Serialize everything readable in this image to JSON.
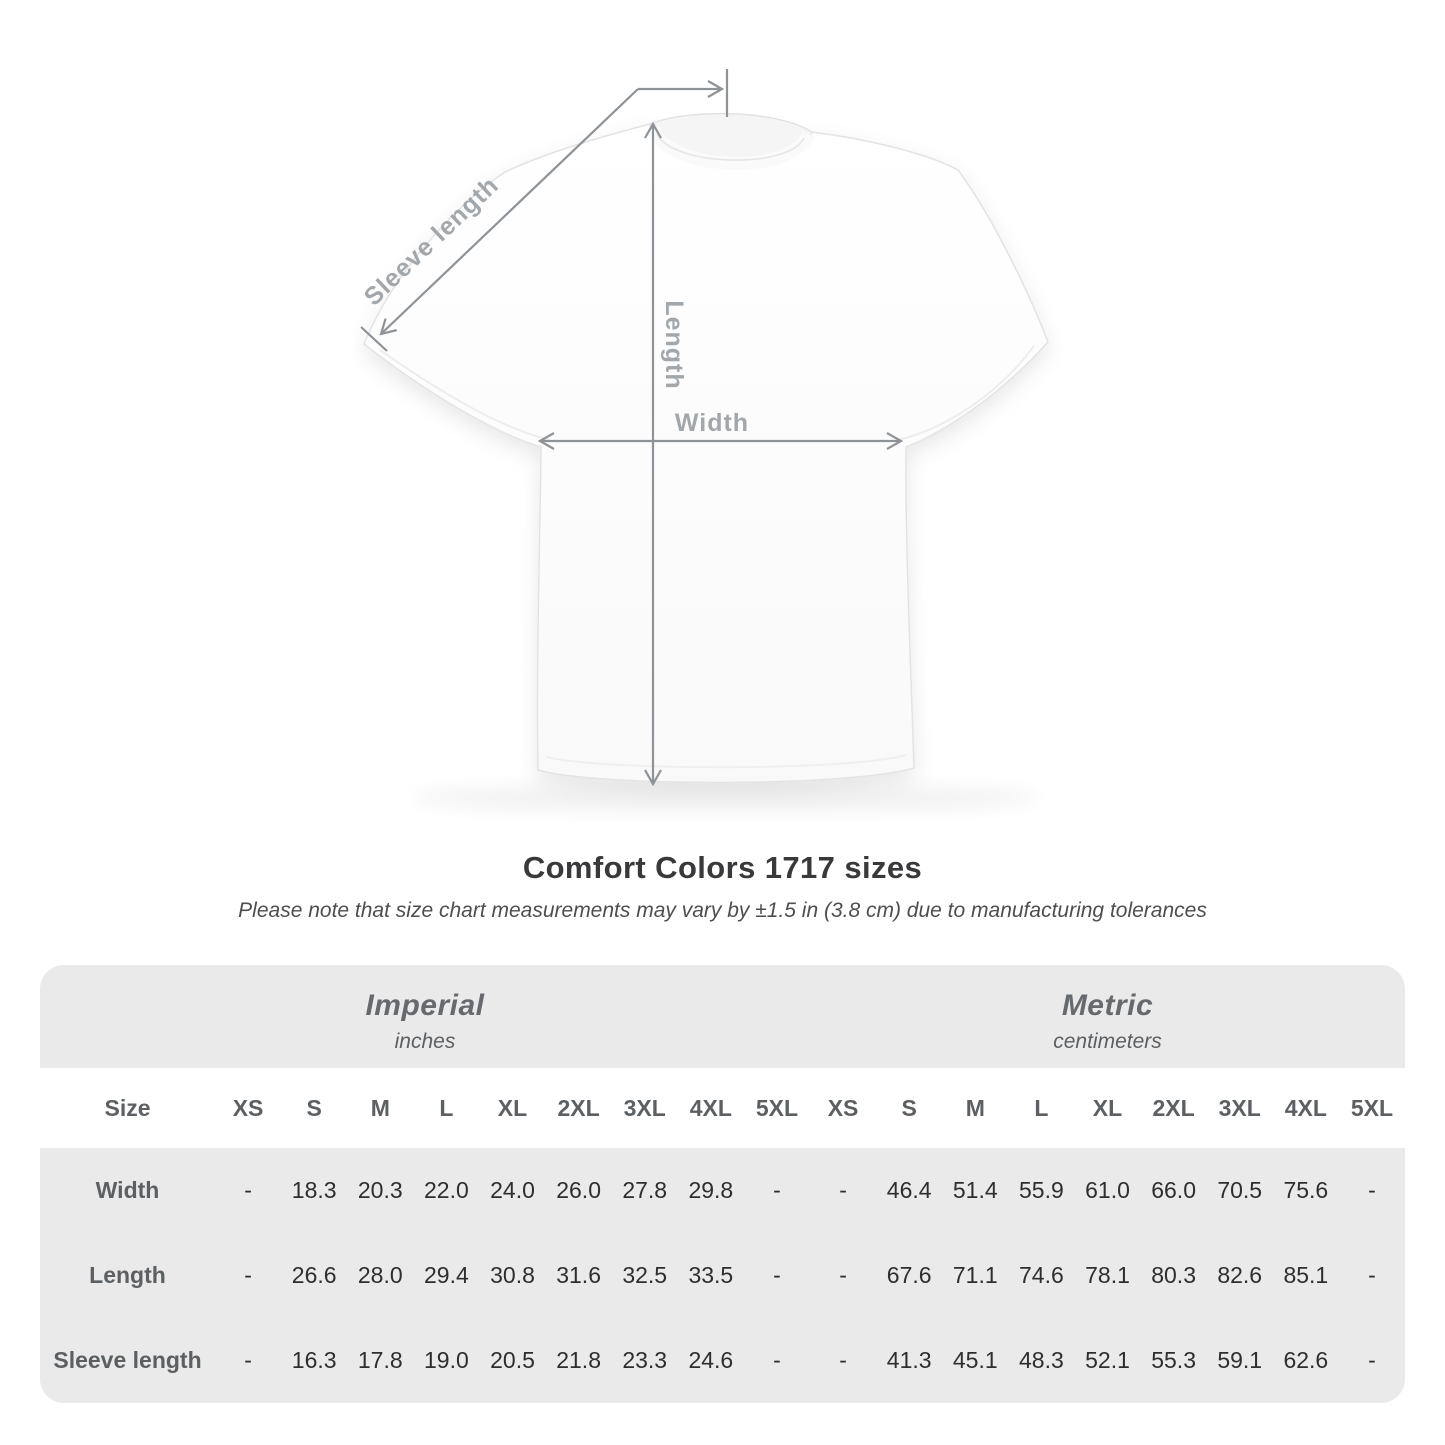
{
  "diagram": {
    "line_color": "#8e9398",
    "label_color": "#a2a7ab",
    "labels": {
      "sleeve": "Sleeve length",
      "length": "Length",
      "width": "Width"
    }
  },
  "heading": {
    "title": "Comfort Colors 1717 sizes",
    "subtitle": "Please note that size chart measurements may vary by ±1.5 in (3.8 cm) due to manufacturing tolerances"
  },
  "size_table": {
    "size_label": "Size",
    "groups": [
      {
        "label": "Imperial",
        "unit": "inches"
      },
      {
        "label": "Metric",
        "unit": "centimeters"
      }
    ],
    "sizes": [
      "XS",
      "S",
      "M",
      "L",
      "XL",
      "2XL",
      "3XL",
      "4XL",
      "5XL"
    ],
    "rows": [
      {
        "label": "Width",
        "imperial": [
          "-",
          "18.3",
          "20.3",
          "22.0",
          "24.0",
          "26.0",
          "27.8",
          "29.8",
          "-"
        ],
        "metric": [
          "-",
          "46.4",
          "51.4",
          "55.9",
          "61.0",
          "66.0",
          "70.5",
          "75.6",
          "-"
        ]
      },
      {
        "label": "Length",
        "imperial": [
          "-",
          "26.6",
          "28.0",
          "29.4",
          "30.8",
          "31.6",
          "32.5",
          "33.5",
          "-"
        ],
        "metric": [
          "-",
          "67.6",
          "71.1",
          "74.6",
          "78.1",
          "80.3",
          "82.6",
          "85.1",
          "-"
        ]
      },
      {
        "label": "Sleeve length",
        "imperial": [
          "-",
          "16.3",
          "17.8",
          "19.0",
          "20.5",
          "21.8",
          "23.3",
          "24.6",
          "-"
        ],
        "metric": [
          "-",
          "41.3",
          "45.1",
          "48.3",
          "52.1",
          "55.3",
          "59.1",
          "62.6",
          "-"
        ]
      }
    ]
  },
  "chart_data": {
    "type": "table",
    "title": "Comfort Colors 1717 sizes",
    "note": "Please note that size chart measurements may vary by ±1.5 in (3.8 cm) due to manufacturing tolerances",
    "measure_annotations": [
      "Sleeve length",
      "Length",
      "Width"
    ],
    "column_groups": [
      {
        "name": "Imperial",
        "unit": "inches"
      },
      {
        "name": "Metric",
        "unit": "centimeters"
      }
    ],
    "columns": [
      "XS",
      "S",
      "M",
      "L",
      "XL",
      "2XL",
      "3XL",
      "4XL",
      "5XL"
    ],
    "rows": [
      {
        "measurement": "Width",
        "imperial_in": [
          null,
          18.3,
          20.3,
          22.0,
          24.0,
          26.0,
          27.8,
          29.8,
          null
        ],
        "metric_cm": [
          null,
          46.4,
          51.4,
          55.9,
          61.0,
          66.0,
          70.5,
          75.6,
          null
        ]
      },
      {
        "measurement": "Length",
        "imperial_in": [
          null,
          26.6,
          28.0,
          29.4,
          30.8,
          31.6,
          32.5,
          33.5,
          null
        ],
        "metric_cm": [
          null,
          67.6,
          71.1,
          74.6,
          78.1,
          80.3,
          82.6,
          85.1,
          null
        ]
      },
      {
        "measurement": "Sleeve length",
        "imperial_in": [
          null,
          16.3,
          17.8,
          19.0,
          20.5,
          21.8,
          23.3,
          24.6,
          null
        ],
        "metric_cm": [
          null,
          41.3,
          45.1,
          48.3,
          52.1,
          55.3,
          59.1,
          62.6,
          null
        ]
      }
    ]
  }
}
